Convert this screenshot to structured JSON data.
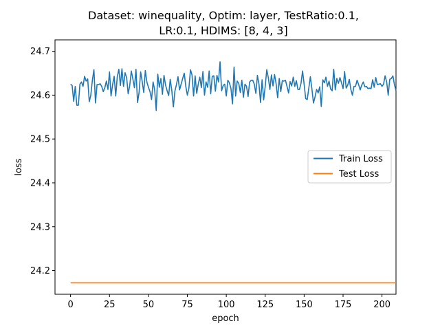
{
  "chart_data": {
    "type": "line",
    "title_lines": [
      "Dataset: winequality, Optim: layer, TestRatio:0.1,",
      "LR:0.1, HDIMS: [8, 4, 3]"
    ],
    "xlabel": "epoch",
    "ylabel": "loss",
    "xlim": [
      -10,
      209
    ],
    "ylim": [
      24.146,
      24.726
    ],
    "xticks": [
      0,
      25,
      50,
      75,
      100,
      125,
      150,
      175,
      200
    ],
    "yticks": [
      24.2,
      24.3,
      24.4,
      24.5,
      24.6,
      24.7
    ],
    "ytick_labels": [
      "24.2",
      "24.3",
      "24.4",
      "24.5",
      "24.6",
      "24.7"
    ],
    "legend_position": "center-right",
    "series": [
      {
        "name": "Train Loss",
        "color": "#1f77b4",
        "values": [
          24.625,
          24.622,
          24.586,
          24.62,
          24.577,
          24.577,
          24.625,
          24.63,
          24.62,
          24.643,
          24.632,
          24.637,
          24.585,
          24.6,
          24.634,
          24.658,
          24.582,
          24.624,
          24.624,
          24.626,
          24.62,
          24.608,
          24.617,
          24.632,
          24.613,
          24.653,
          24.598,
          24.624,
          24.643,
          24.598,
          24.642,
          24.659,
          24.622,
          24.66,
          24.62,
          24.651,
          24.64,
          24.603,
          24.622,
          24.655,
          24.637,
          24.617,
          24.659,
          24.583,
          24.606,
          24.653,
          24.631,
          24.606,
          24.656,
          24.63,
          24.618,
          24.608,
          24.59,
          24.63,
          24.612,
          24.565,
          24.648,
          24.618,
          24.638,
          24.602,
          24.645,
          24.623,
          24.61,
          24.599,
          24.636,
          24.611,
          24.573,
          24.609,
          24.624,
          24.642,
          24.612,
          24.625,
          24.638,
          24.65,
          24.62,
          24.6,
          24.616,
          24.658,
          24.646,
          24.598,
          24.644,
          24.604,
          24.625,
          24.641,
          24.617,
          24.654,
          24.6,
          24.63,
          24.618,
          24.655,
          24.603,
          24.643,
          24.644,
          24.609,
          24.645,
          24.63,
          24.676,
          24.61,
          24.622,
          24.625,
          24.598,
          24.634,
          24.628,
          24.615,
          24.58,
          24.664,
          24.598,
          24.632,
          24.627,
          24.606,
          24.634,
          24.595,
          24.625,
          24.62,
          24.597,
          24.63,
          24.634,
          24.634,
          24.625,
          24.604,
          24.645,
          24.625,
          24.583,
          24.635,
          24.589,
          24.62,
          24.658,
          24.64,
          24.613,
          24.646,
          24.621,
          24.647,
          24.626,
          24.594,
          24.638,
          24.608,
          24.633,
          24.632,
          24.634,
          24.62,
          24.605,
          24.631,
          24.621,
          24.641,
          24.62,
          24.633,
          24.613,
          24.613,
          24.627,
          24.655,
          24.625,
          24.592,
          24.59,
          24.616,
          24.642,
          24.614,
          24.582,
          24.596,
          24.613,
          24.605,
          24.619,
          24.574,
          24.635,
          24.628,
          24.641,
          24.62,
          24.632,
          24.614,
          24.61,
          24.659,
          24.612,
          24.638,
          24.627,
          24.64,
          24.628,
          24.615,
          24.654,
          24.616,
          24.623,
          24.636,
          24.613,
          24.6,
          24.62,
          24.62,
          24.634,
          24.624,
          24.612,
          24.623,
          24.63,
          24.619,
          24.62,
          24.615,
          24.616,
          24.615,
          24.635,
          24.618,
          24.64,
          24.624,
          24.625,
          24.626,
          24.62,
          24.625,
          24.644,
          24.63,
          24.6,
          24.636,
          24.638,
          24.644,
          24.624,
          24.61
        ]
      },
      {
        "name": "Test Loss",
        "color": "#ff7f0e",
        "values": []
      }
    ],
    "test_constant": 24.172
  }
}
